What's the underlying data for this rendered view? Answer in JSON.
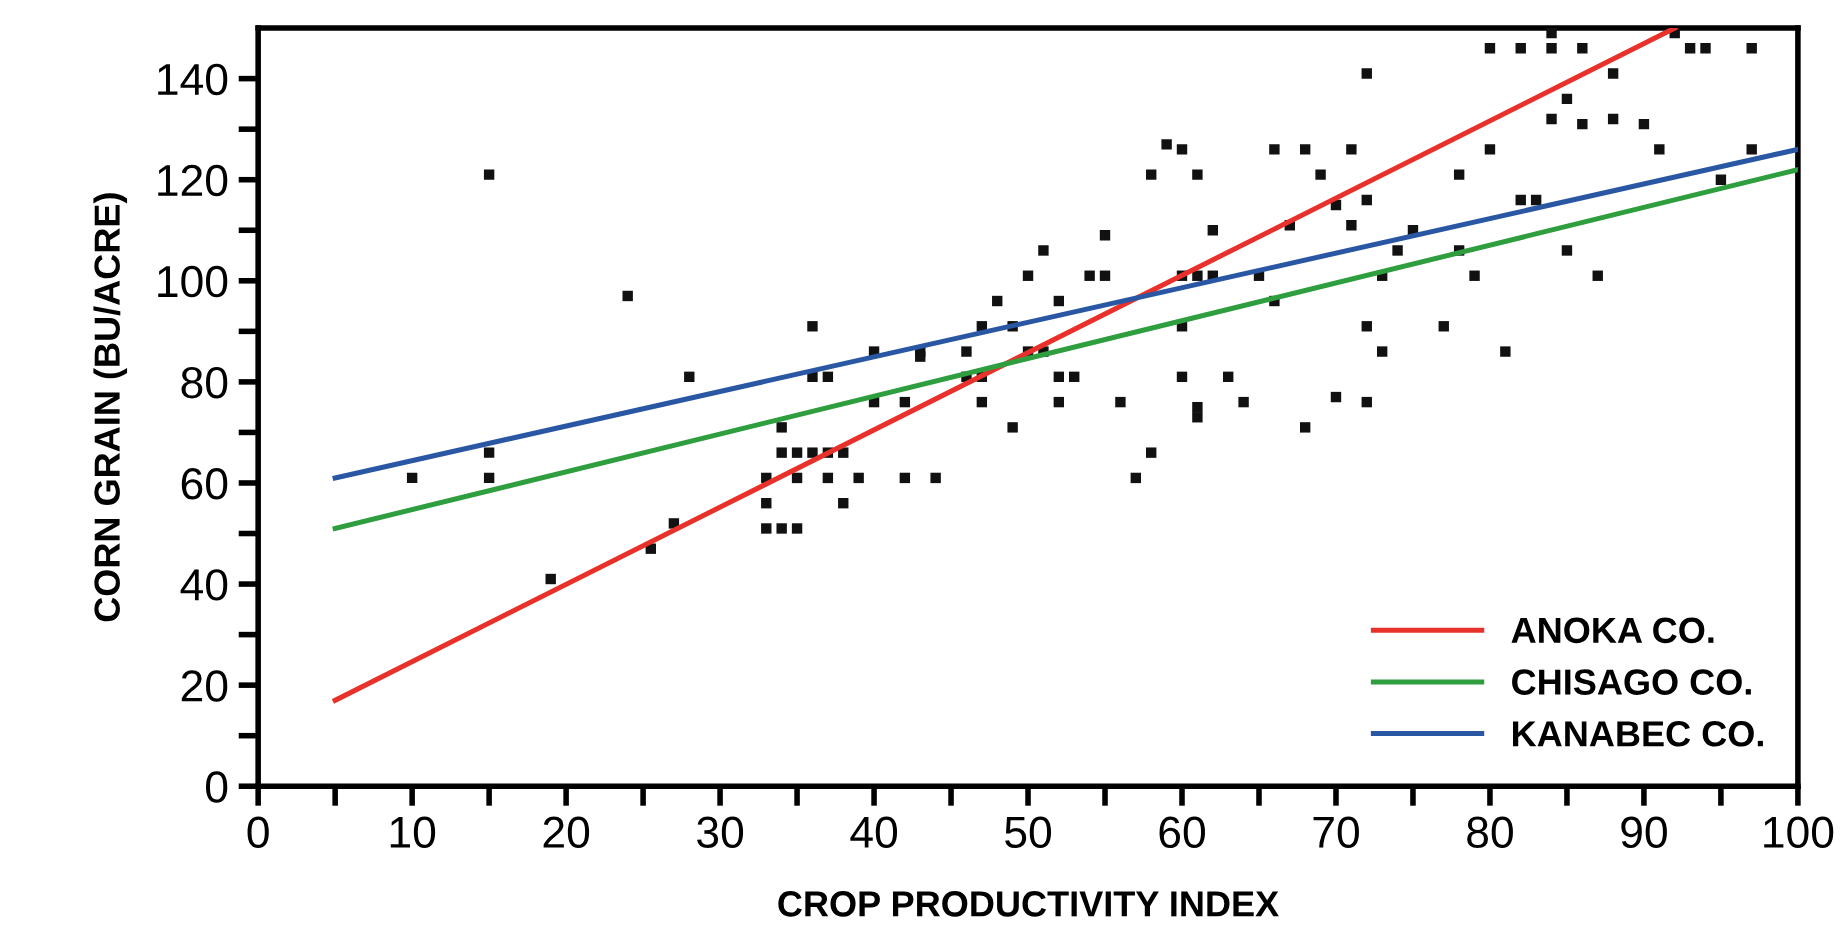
{
  "chart_data": {
    "type": "scatter",
    "xlabel": "CROP PRODUCTIVITY INDEX",
    "ylabel": "CORN GRAIN (BU/ACRE)",
    "xlim": [
      0,
      100
    ],
    "ylim": [
      0,
      150
    ],
    "xticks": [
      0,
      {
        "value": 5,
        "label": null
      },
      10,
      {
        "value": 15,
        "label": null
      },
      20,
      {
        "value": 25,
        "label": null
      },
      30,
      {
        "value": 35,
        "label": null
      },
      40,
      {
        "value": 45,
        "label": null
      },
      50,
      {
        "value": 55,
        "label": null
      },
      60,
      {
        "value": 65,
        "label": null
      },
      70,
      {
        "value": 75,
        "label": null
      },
      80,
      {
        "value": 85,
        "label": null
      },
      90,
      {
        "value": 95,
        "label": null
      },
      100
    ],
    "yticks": [
      0,
      {
        "value": 10,
        "label": null
      },
      20,
      {
        "value": 30,
        "label": null
      },
      40,
      {
        "value": 50,
        "label": null
      },
      60,
      {
        "value": 70,
        "label": null
      },
      80,
      {
        "value": 90,
        "label": null
      },
      100,
      {
        "value": 110,
        "label": null
      },
      120,
      {
        "value": 130,
        "label": null
      },
      140
    ],
    "grid": false,
    "legend": "bottom right",
    "series": [
      {
        "marker": "square",
        "color": "#111111",
        "x": [
          10,
          15,
          15,
          15,
          19,
          24,
          28,
          27,
          25.5,
          33,
          33,
          34,
          35,
          33,
          34,
          35,
          36,
          37,
          35,
          37,
          36,
          36,
          34,
          37,
          38,
          38,
          39,
          40,
          40,
          42,
          42,
          43,
          44,
          43,
          46,
          46,
          47,
          47,
          47,
          48,
          49,
          49,
          52,
          50,
          51,
          52,
          53,
          52,
          50,
          51,
          54,
          55,
          55,
          56,
          57,
          58,
          58,
          59,
          60,
          61,
          60,
          60,
          61,
          62,
          60,
          61,
          61,
          62,
          63,
          64,
          65,
          66,
          66,
          67,
          68,
          68,
          69,
          70,
          71,
          71,
          72,
          72,
          72,
          73,
          72,
          70,
          74,
          73,
          75,
          77,
          78,
          78,
          79,
          80,
          80,
          81,
          82,
          84,
          84,
          84,
          85,
          85,
          86,
          86,
          83,
          82,
          88,
          88,
          90,
          91,
          92,
          93,
          94,
          97,
          97,
          95,
          87
        ],
        "values": [
          61,
          121,
          66,
          61,
          41,
          97,
          81,
          52,
          47,
          56,
          51,
          51,
          51,
          61,
          66,
          66,
          66,
          66,
          61,
          61,
          91,
          81,
          71,
          81,
          56,
          66,
          61,
          76,
          86,
          61,
          76,
          85,
          61,
          86,
          81,
          86,
          81,
          76,
          91,
          96,
          91,
          71,
          76,
          86,
          86,
          81,
          81,
          96,
          101,
          106,
          101,
          101,
          109,
          76,
          61,
          66,
          121,
          127,
          126,
          121,
          91,
          101,
          101,
          110,
          81,
          75,
          73,
          101,
          81,
          76,
          101,
          126,
          96,
          111,
          126,
          71,
          121,
          115,
          126,
          111,
          116,
          141,
          91,
          86,
          76,
          77,
          106,
          101,
          110,
          91,
          121,
          106,
          101,
          126,
          146,
          86,
          146,
          149,
          146,
          132,
          136,
          106,
          146,
          131,
          116,
          116,
          141,
          132,
          131,
          126,
          149,
          146,
          146,
          126,
          146,
          120,
          101
        ]
      },
      {
        "type": "line",
        "name": "ANOKA CO.",
        "color": "#e8312a",
        "x": [
          5,
          92
        ],
        "values": [
          17,
          150
        ]
      },
      {
        "type": "line",
        "name": "CHISAGO CO.",
        "color": "#2e9e3e",
        "x": [
          5,
          100
        ],
        "values": [
          51,
          122
        ]
      },
      {
        "type": "line",
        "name": "KANABEC CO.",
        "color": "#2957a4",
        "x": [
          5,
          100
        ],
        "values": [
          61,
          126
        ]
      }
    ]
  }
}
